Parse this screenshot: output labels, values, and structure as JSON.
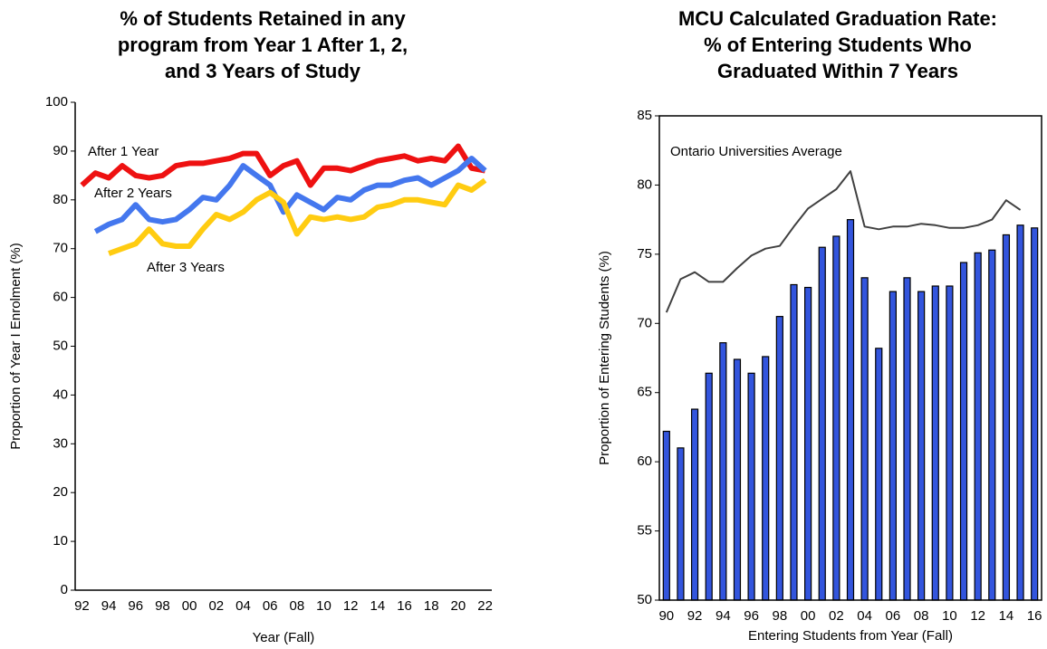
{
  "chart_data": [
    {
      "type": "line",
      "title": [
        "% of Students Retained in any",
        "program from Year 1 After 1, 2,",
        "and 3 Years of Study"
      ],
      "x_label": "Year (Fall)",
      "y_label": "Proportion of Year I Enrolment (%)",
      "categories": [
        "92",
        null,
        "94",
        null,
        "96",
        null,
        "98",
        null,
        "00",
        null,
        "02",
        null,
        "04",
        null,
        "06",
        null,
        "08",
        null,
        "10",
        null,
        "12",
        null,
        "14",
        null,
        "16",
        null,
        "18",
        null,
        "20",
        null,
        "22"
      ],
      "series": [
        {
          "name": "After 1 Year",
          "color": "#ee1111",
          "values": [
            83,
            85.5,
            84.5,
            87,
            85,
            84.5,
            85,
            87,
            87.5,
            87.5,
            88,
            88.5,
            89.5,
            89.5,
            85,
            87,
            88,
            83,
            86.5,
            86.5,
            86,
            87,
            88,
            88.5,
            89,
            88,
            88.5,
            88,
            91,
            86.5,
            86
          ]
        },
        {
          "name": "After 2 Years",
          "color": "#4477ee",
          "values": [
            null,
            73.5,
            75,
            76,
            79,
            76,
            75.5,
            76,
            78,
            80.5,
            80,
            83,
            87,
            85,
            83,
            77.5,
            81,
            79.5,
            78,
            80.5,
            80,
            82,
            83,
            83,
            84,
            84.5,
            83,
            84.5,
            86,
            88.5,
            86
          ]
        },
        {
          "name": "After 3 Years",
          "color": "#ffcc11",
          "values": [
            null,
            null,
            69,
            70,
            71,
            74,
            71,
            70.5,
            70.5,
            74,
            77,
            76,
            77.5,
            80,
            81.5,
            79.5,
            73,
            76.5,
            76,
            76.5,
            76,
            76.5,
            78.5,
            79,
            80,
            80,
            79.5,
            79,
            83,
            82,
            84
          ]
        }
      ],
      "ylim": [
        0,
        100
      ],
      "yticks": [
        0,
        10,
        20,
        30,
        40,
        50,
        60,
        70,
        80,
        90,
        100
      ],
      "grid": false
    },
    {
      "type": "bar",
      "title": [
        "MCU Calculated Graduation Rate:",
        "% of Entering Students Who",
        "Graduated Within 7 Years"
      ],
      "x_label": "Entering Students from Year (Fall)",
      "y_label": "Proportion of Entering Students (%)",
      "categories": [
        "90",
        null,
        "92",
        null,
        "94",
        null,
        "96",
        null,
        "98",
        null,
        "00",
        null,
        "02",
        null,
        "04",
        null,
        "06",
        null,
        "08",
        null,
        "10",
        null,
        "12",
        null,
        "14",
        null,
        "16"
      ],
      "series": [
        {
          "type": "bar",
          "color": "#3355dd",
          "values": [
            62.2,
            61,
            63.8,
            66.4,
            68.6,
            67.4,
            66.4,
            67.6,
            70.5,
            72.8,
            72.6,
            75.5,
            76.3,
            77.5,
            73.3,
            68.2,
            72.3,
            73.3,
            72.3,
            72.7,
            72.7,
            74.4,
            75.1,
            75.3,
            76.4,
            77.1,
            76.9
          ]
        },
        {
          "type": "line",
          "name": "Ontario Universities Average",
          "color": "#404040",
          "values": [
            70.8,
            73.2,
            73.7,
            73,
            73,
            74,
            74.9,
            75.4,
            75.6,
            77,
            78.3,
            79,
            79.7,
            81,
            77,
            76.8,
            77,
            77,
            77.2,
            77.1,
            76.9,
            76.9,
            77.1,
            77.5,
            78.9,
            78.2,
            null
          ]
        }
      ],
      "ylim": [
        50,
        85
      ],
      "yticks": [
        50,
        55,
        60,
        65,
        70,
        75,
        80,
        85
      ],
      "grid": false
    }
  ]
}
